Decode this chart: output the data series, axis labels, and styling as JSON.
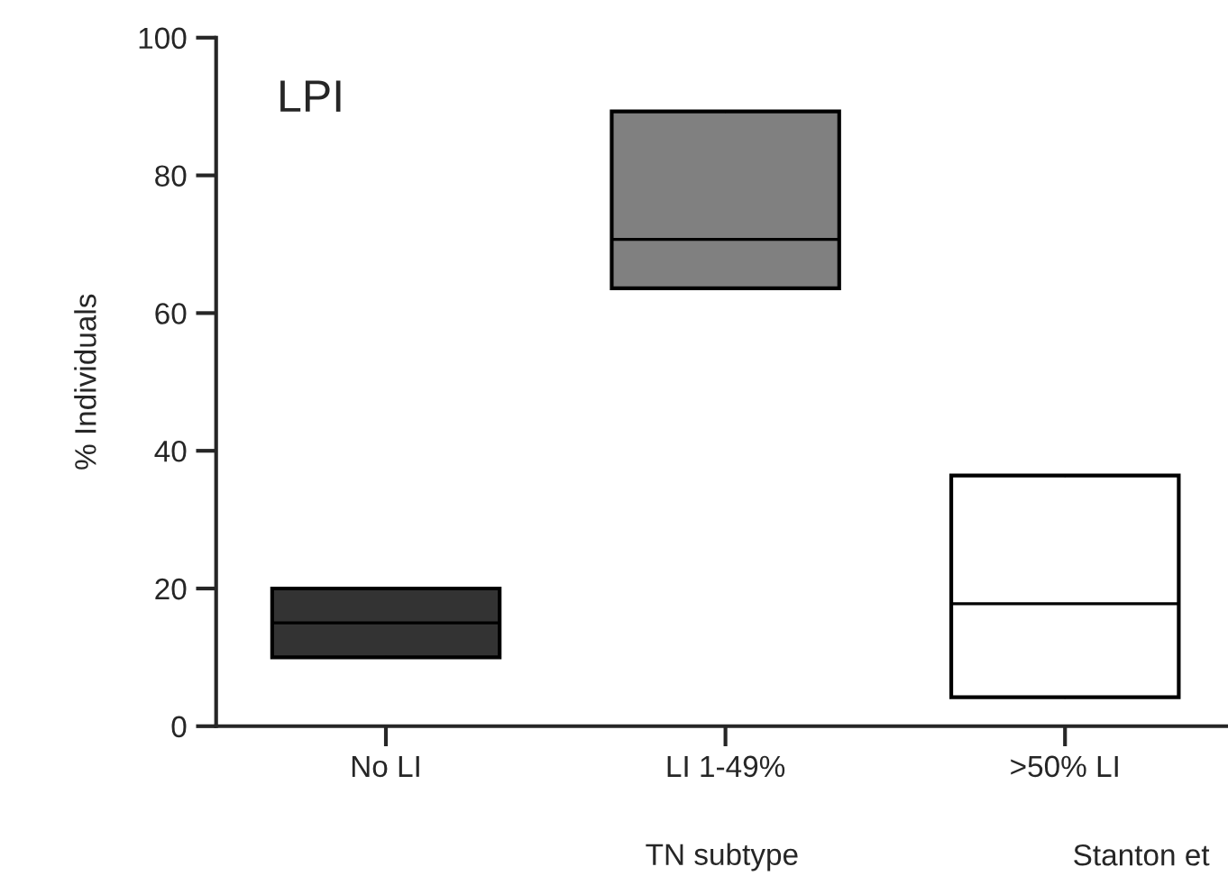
{
  "chart_data": {
    "type": "box",
    "title": "LPI",
    "xlabel": "TN subtype",
    "ylabel": "% Individuals",
    "categories": [
      "No LI",
      "LI 1-49%",
      ">50% LI"
    ],
    "boxes": [
      {
        "low": 10,
        "q1": 10,
        "median": 15,
        "q3": 20,
        "high": 20
      },
      {
        "low": 63.6,
        "q1": 63.6,
        "median": 70.7,
        "q3": 89.3,
        "high": 89.3
      },
      {
        "low": 4.2,
        "q1": 4.2,
        "median": 17.8,
        "q3": 36.4,
        "high": 36.4
      }
    ],
    "colors": [
      "#333333",
      "#808080",
      "#ffffff"
    ],
    "ylim": [
      0,
      100
    ],
    "yticks": [
      0,
      20,
      40,
      60,
      80,
      100
    ],
    "grid": false,
    "annotations": [
      "Stanton et"
    ]
  }
}
